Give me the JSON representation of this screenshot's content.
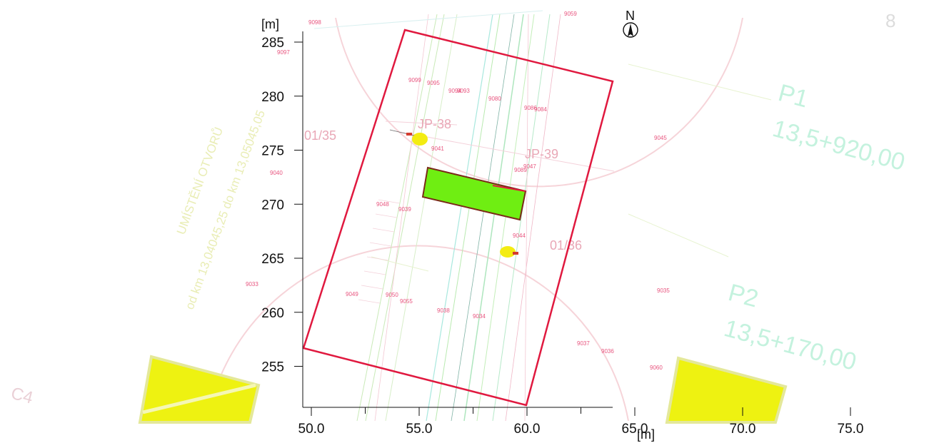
{
  "map": {
    "x_axis": {
      "unit": "[m]",
      "ticks": [
        "50.0",
        "55.0",
        "60.0",
        "65.0",
        "70.0",
        "75.0"
      ]
    },
    "y_axis": {
      "unit": "[m]",
      "ticks": [
        "285",
        "280",
        "275",
        "270",
        "265",
        "260",
        "255"
      ]
    },
    "north_label": "N",
    "background_text": {
      "kilometrage_1": "UMÍSTĚNÍ OTVORŮ",
      "kilometrage_2": "od km 13,04045,25 do km 13,05045,05",
      "station_p1": "P1",
      "station_p1_km": "13,5+920,00",
      "station_p2": "P2",
      "station_p2_km": "13,5+170,00",
      "corner_code": "C4",
      "corner_digit": "8"
    },
    "zone_labels": {
      "left": "01/35",
      "right": "01/36",
      "borehole_1": "JP-38",
      "borehole_2": "JP-39"
    },
    "points": [
      "9098",
      "9097",
      "9099",
      "9095",
      "9094",
      "9093",
      "9080",
      "9086",
      "9084",
      "9045",
      "9041",
      "9040",
      "9089",
      "9047",
      "9048",
      "9039",
      "9044",
      "9033",
      "9049",
      "9050",
      "9055",
      "9038",
      "9034",
      "9035",
      "9037",
      "9036",
      "9060",
      "9059",
      "9058",
      "9057",
      "9056",
      "9054",
      "9053",
      "9052",
      "9051",
      "9046",
      "9043",
      "9042",
      "9024",
      "9025",
      "9026",
      "9027",
      "9028",
      "9029",
      "9030"
    ]
  }
}
